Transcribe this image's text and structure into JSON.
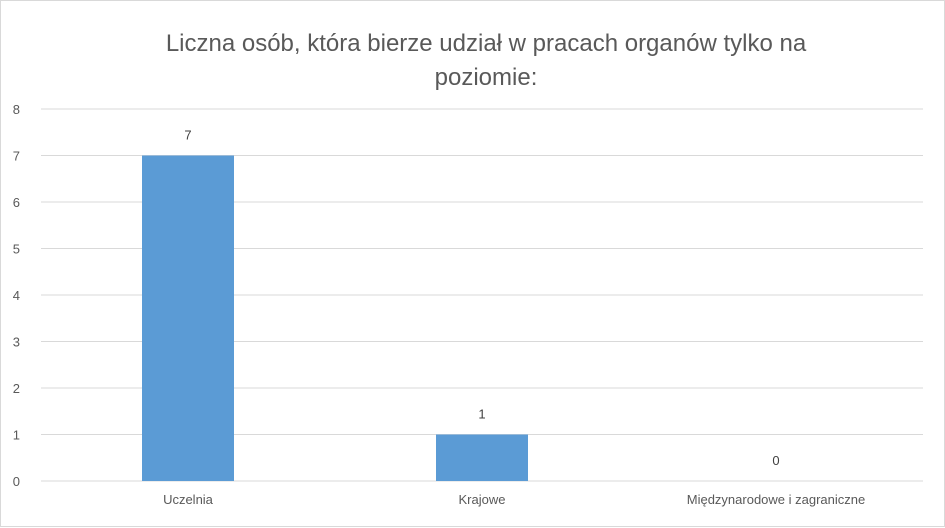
{
  "chart_data": {
    "type": "bar",
    "title": "Liczna osób, która bierze udział w pracach organów tylko na poziomie:",
    "categories": [
      "Uczelnia",
      "Krajowe",
      "Międzynarodowe i zagraniczne"
    ],
    "series": [
      {
        "values": [
          7,
          1,
          0
        ],
        "color": "#5b9bd5"
      }
    ],
    "ylim": [
      0,
      8
    ],
    "yticks": [
      0,
      1,
      2,
      3,
      4,
      5,
      6,
      7,
      8
    ],
    "grid": true,
    "legend": "none",
    "data_labels": true
  }
}
